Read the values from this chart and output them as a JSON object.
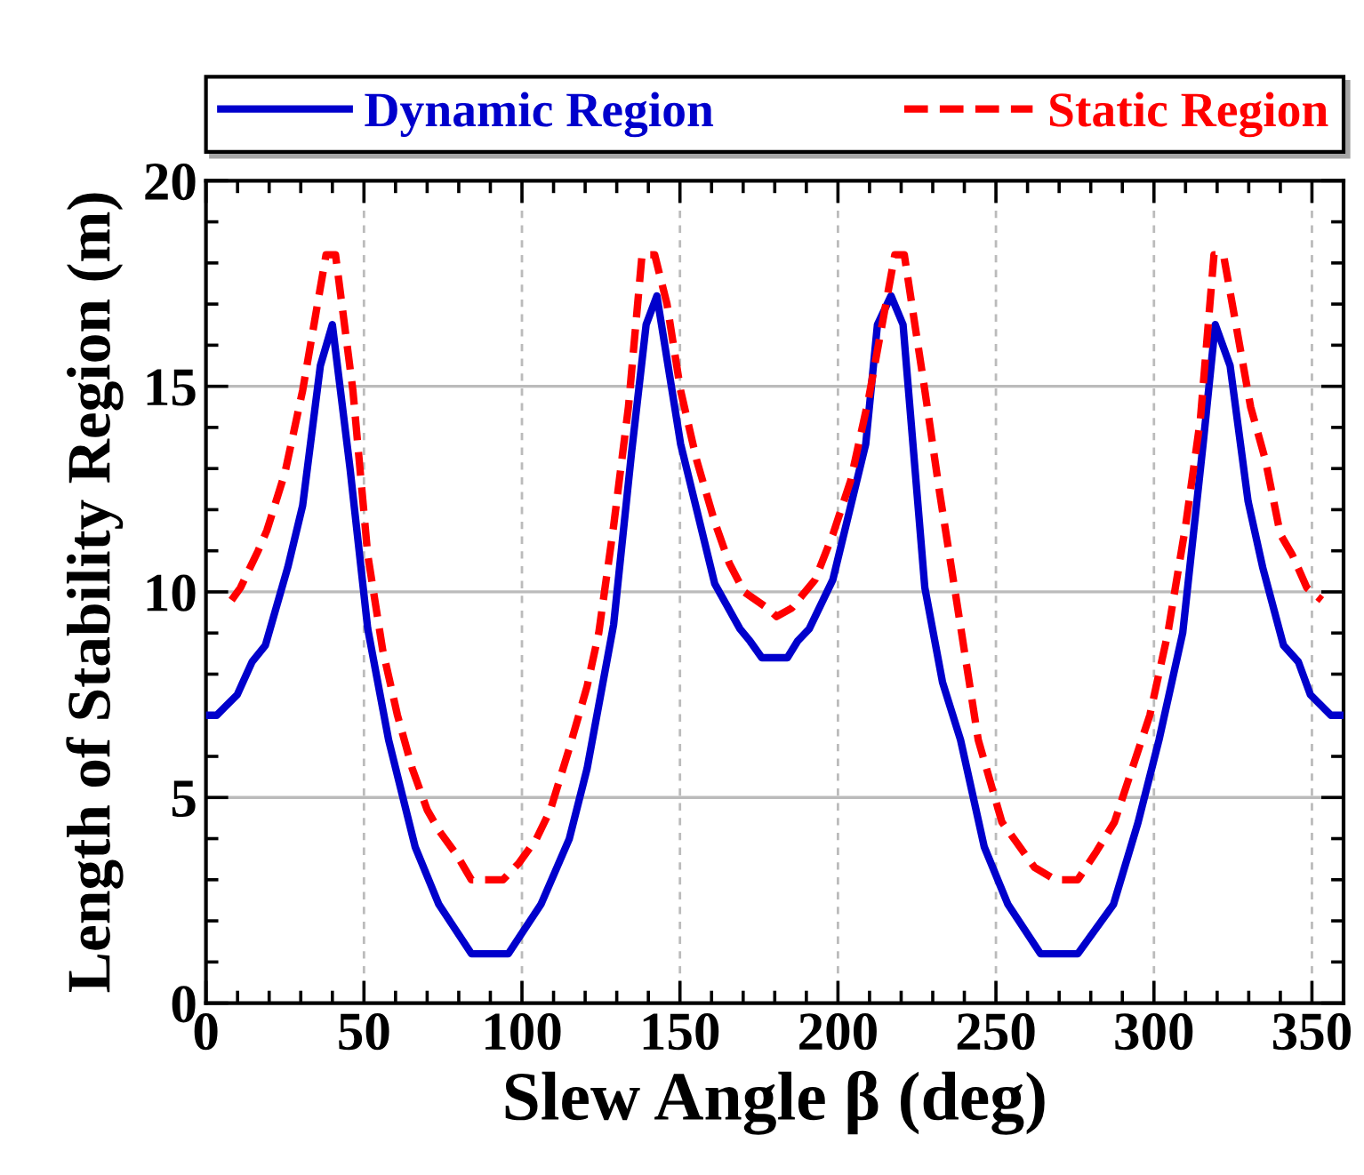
{
  "chart_data": {
    "type": "line",
    "xlabel": "Slew Angle β (deg)",
    "ylabel": "Length of Stability Region (m)",
    "xlim": [
      0,
      360
    ],
    "xticks": [
      0,
      50,
      100,
      150,
      200,
      250,
      300,
      350
    ],
    "ylim": [
      0,
      20
    ],
    "yticks": [
      0,
      5,
      10,
      15,
      20
    ],
    "grid": true,
    "legend": "top",
    "series": [
      {
        "name": "Dynamic Region",
        "color": "#0000cc",
        "line_style": "solid",
        "x": [
          0,
          3.4,
          9.9,
          14.6,
          18.8,
          25.9,
          30.6,
          36.2,
          40,
          45.6,
          51.2,
          57.8,
          66.2,
          73.7,
          84,
          95.7,
          106,
          115,
          120.6,
          129,
          134.7,
          139.3,
          142.7,
          150.2,
          155.3,
          161,
          169,
          172.2,
          175.9,
          184,
          187.2,
          190.9,
          198.4,
          208.8,
          212.5,
          216.8,
          220.6,
          227.5,
          233.1,
          238.8,
          246.3,
          253.8,
          264.1,
          275.9,
          287.2,
          295,
          301.6,
          309.1,
          315.7,
          319.4,
          324.1,
          329.8,
          334.4,
          341,
          345.7,
          349.5,
          356,
          360
        ],
        "values": [
          7.0,
          7.0,
          7.5,
          8.3,
          8.7,
          10.6,
          12.1,
          15.5,
          16.5,
          13.0,
          9.1,
          6.4,
          3.8,
          2.4,
          1.2,
          1.2,
          2.4,
          4.0,
          5.7,
          9.2,
          13.4,
          16.5,
          17.2,
          13.6,
          12.0,
          10.2,
          9.1,
          8.8,
          8.4,
          8.4,
          8.8,
          9.1,
          10.3,
          13.6,
          16.5,
          17.2,
          16.5,
          10.1,
          7.8,
          6.4,
          3.8,
          2.4,
          1.2,
          1.2,
          2.4,
          4.4,
          6.4,
          9.0,
          13.7,
          16.5,
          15.5,
          12.2,
          10.6,
          8.7,
          8.3,
          7.5,
          7.0,
          7.0
        ]
      },
      {
        "name": "Static Region",
        "color": "#ff0000",
        "line_style": "dashed",
        "x": [
          8.1,
          10.9,
          16.5,
          19.3,
          25,
          30.6,
          35.3,
          38,
          41,
          46.5,
          51.2,
          55.9,
          60.6,
          65.3,
          70,
          73.7,
          79.4,
          84,
          94,
          99,
          104.6,
          109,
          115,
          120.6,
          124.3,
          129,
          133.7,
          138,
          142,
          145.9,
          150.2,
          155.3,
          161,
          165.6,
          170.3,
          177.8,
          180.6,
          185.3,
          192.8,
          198.4,
          204,
          209.7,
          218,
          221,
          227.5,
          232.2,
          236.9,
          244.4,
          251.9,
          256.6,
          262.2,
          268.8,
          275.9,
          281.9,
          287.5,
          293.1,
          298.7,
          304.4,
          310,
          314.7,
          319,
          322,
          330.6,
          335.3,
          340,
          343.8,
          348.4,
          353.1
        ],
        "values": [
          9.8,
          10.1,
          11.0,
          11.5,
          12.9,
          14.9,
          17.0,
          18.2,
          18.2,
          14.9,
          10.9,
          8.6,
          7.0,
          5.7,
          4.7,
          4.2,
          3.6,
          3.0,
          3.0,
          3.4,
          4.0,
          4.7,
          6.2,
          7.7,
          9.0,
          11.6,
          14.5,
          18.2,
          18.2,
          17.0,
          14.9,
          13.2,
          11.7,
          10.7,
          10.0,
          9.6,
          9.4,
          9.6,
          10.3,
          11.4,
          12.7,
          14.7,
          18.2,
          18.2,
          14.9,
          12.4,
          10.1,
          6.4,
          4.4,
          3.9,
          3.3,
          3.0,
          3.0,
          3.7,
          4.4,
          5.7,
          7.0,
          9.0,
          11.6,
          14.2,
          18.2,
          18.2,
          14.5,
          13.2,
          11.4,
          10.9,
          10.1,
          9.8
        ]
      }
    ]
  }
}
